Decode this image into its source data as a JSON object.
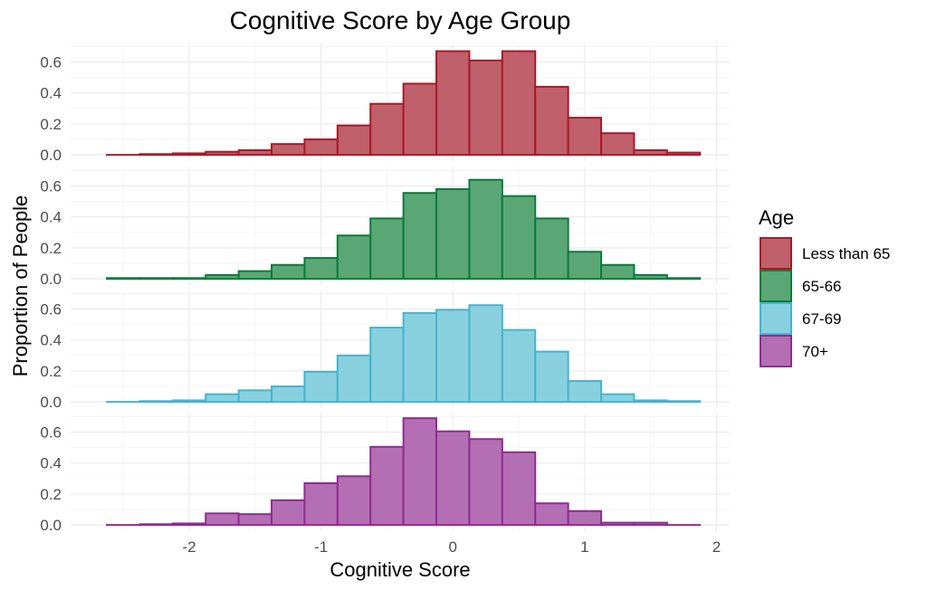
{
  "chart_data": {
    "type": "histogram-facet",
    "title": "Cognitive Score by Age Group",
    "xlabel": "Cognitive Score",
    "ylabel": "Proportion of People",
    "xlim": [
      -2.9,
      2.1
    ],
    "ylim": [
      -0.04,
      0.72
    ],
    "x_ticks": [
      -2,
      -1,
      0,
      1,
      2
    ],
    "x_tick_labels": [
      "-2",
      "-1",
      "0",
      "1",
      "2"
    ],
    "y_ticks": [
      0.0,
      0.2,
      0.4,
      0.6
    ],
    "y_tick_labels": [
      "0.0",
      "0.2",
      "0.4",
      "0.6"
    ],
    "bin_width": 0.25,
    "bin_edges": [
      -2.625,
      -2.375,
      -2.125,
      -1.875,
      -1.625,
      -1.375,
      -1.125,
      -0.875,
      -0.625,
      -0.375,
      -0.125,
      0.125,
      0.375,
      0.625,
      0.875,
      1.125,
      1.375,
      1.625,
      1.875
    ],
    "legend": {
      "title": "Age",
      "position": "right",
      "entries": [
        "Less than 65",
        "65-66",
        "67-69",
        "70+"
      ]
    },
    "series": [
      {
        "name": "Less than 65",
        "fill": "#c0606a",
        "stroke": "#a8192a",
        "values": [
          0.0,
          0.005,
          0.01,
          0.02,
          0.03,
          0.07,
          0.1,
          0.19,
          0.33,
          0.46,
          0.67,
          0.61,
          0.67,
          0.44,
          0.24,
          0.14,
          0.03,
          0.015
        ]
      },
      {
        "name": "65-66",
        "fill": "#5aa775",
        "stroke": "#0b7b3b",
        "values": [
          0.005,
          0.005,
          0.005,
          0.025,
          0.05,
          0.09,
          0.135,
          0.28,
          0.39,
          0.555,
          0.58,
          0.64,
          0.535,
          0.39,
          0.175,
          0.09,
          0.025,
          0.005
        ]
      },
      {
        "name": "67-69",
        "fill": "#89d0df",
        "stroke": "#45b3d0",
        "values": [
          0.0,
          0.005,
          0.01,
          0.05,
          0.075,
          0.1,
          0.195,
          0.3,
          0.48,
          0.575,
          0.595,
          0.625,
          0.465,
          0.325,
          0.135,
          0.05,
          0.01,
          0.005
        ]
      },
      {
        "name": "70+",
        "fill": "#b46fb4",
        "stroke": "#8e2c90",
        "values": [
          0.0,
          0.005,
          0.01,
          0.075,
          0.07,
          0.16,
          0.27,
          0.315,
          0.505,
          0.69,
          0.605,
          0.555,
          0.47,
          0.14,
          0.09,
          0.015,
          0.015,
          0.0
        ]
      }
    ]
  }
}
